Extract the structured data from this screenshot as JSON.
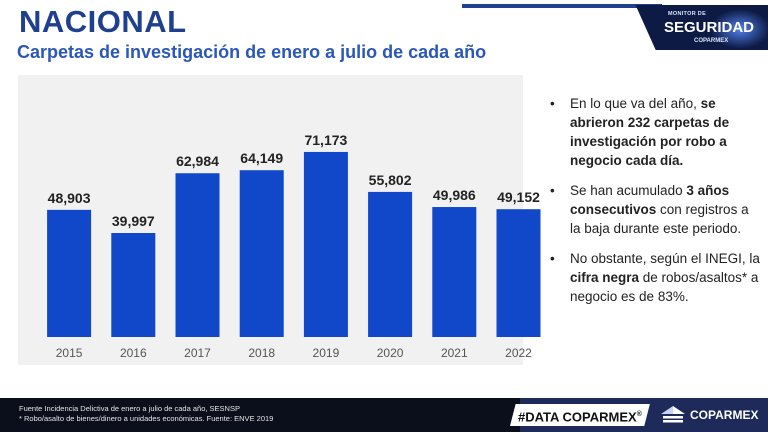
{
  "header": {
    "title": "NACIONAL",
    "subtitle": "Carpetas de investigación de enero a julio de cada año"
  },
  "brand": {
    "small": "MONITOR DE",
    "name": "SEGURIDAD",
    "org": "COPARMEX"
  },
  "bullets": [
    {
      "before": "En lo que va del año, ",
      "bold": "se abrieron 232 carpetas de investigación por robo a negocio cada día.",
      "after": ""
    },
    {
      "before": "Se han acumulado ",
      "bold": "3 años consecutivos",
      "after": " con registros a la baja durante este periodo."
    },
    {
      "before": "No obstante, según el INEGI, la ",
      "bold": "cifra negra",
      "after": " de robos/asaltos* a negocio es de 83%."
    }
  ],
  "footer": {
    "source": "Fuente Incidencia Delictiva de enero a julio de cada año, SESNSP",
    "note": "* Robo/asalto de bienes/dinero a unidades económicas. Fuente: ENVE 2019",
    "hashtag": "#DATA COPARMEX",
    "hashtag_mark": "®",
    "logo_text": "COPARMEX"
  },
  "colors": {
    "bar": "#1147c9",
    "title": "#1f3f8f",
    "subtitle": "#2a57b8"
  },
  "chart_data": {
    "type": "bar",
    "categories": [
      "2015",
      "2016",
      "2017",
      "2018",
      "2019",
      "2020",
      "2021",
      "2022"
    ],
    "values": [
      48903,
      39997,
      62984,
      64149,
      71173,
      55802,
      49986,
      49152
    ],
    "value_labels": [
      "48,903",
      "39,997",
      "62,984",
      "64,149",
      "71,173",
      "55,802",
      "49,986",
      "49,152"
    ],
    "title": "",
    "xlabel": "",
    "ylabel": "",
    "ylim": [
      0,
      85000
    ],
    "grid": false,
    "legend": "none"
  }
}
